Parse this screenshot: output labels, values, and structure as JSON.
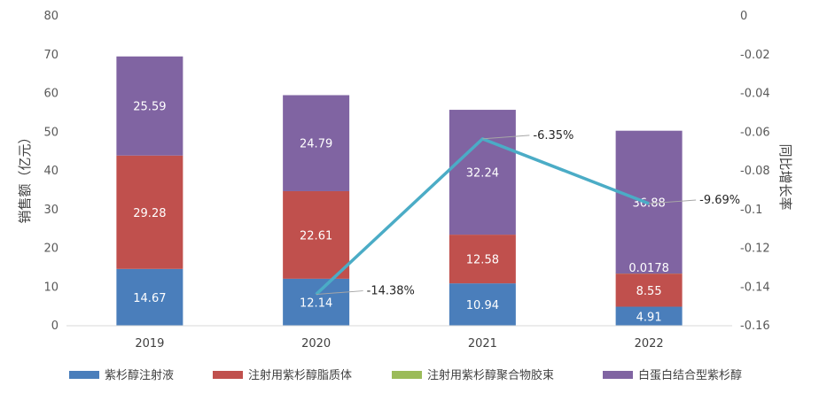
{
  "chart_data": {
    "type": "bar",
    "stacked": true,
    "title": "",
    "categories": [
      "2019",
      "2020",
      "2021",
      "2022"
    ],
    "series": [
      {
        "name": "紫杉醇注射液",
        "color": "#4a7ebb",
        "values": [
          14.67,
          12.14,
          10.94,
          4.91
        ],
        "labels": [
          "14.67",
          "12.14",
          "10.94",
          "4.91"
        ]
      },
      {
        "name": "注射用紫杉醇脂质体",
        "color": "#c0504d",
        "values": [
          29.28,
          22.61,
          12.58,
          8.55
        ],
        "labels": [
          "29.28",
          "22.61",
          "12.58",
          "8.55"
        ]
      },
      {
        "name": "注射用紫杉醇聚合物胶束",
        "color": "#9bbb59",
        "values": [
          0,
          0,
          0,
          0.0178
        ],
        "labels": [
          "",
          "",
          "",
          "0.0178"
        ]
      },
      {
        "name": "白蛋白结合型紫杉醇",
        "color": "#8064a2",
        "values": [
          25.59,
          24.79,
          32.24,
          36.88
        ],
        "labels": [
          "25.59",
          "24.79",
          "32.24",
          "36.88"
        ]
      }
    ],
    "line": {
      "name": "同比增长率",
      "color": "#4bacc6",
      "points": [
        {
          "category": "2020",
          "value": -0.1438,
          "label": "-14.38%"
        },
        {
          "category": "2021",
          "value": -0.0635,
          "label": "-6.35%"
        },
        {
          "category": "2022",
          "value": -0.0969,
          "label": "-9.69%"
        }
      ]
    },
    "ylabel": "销售额（亿元）",
    "y2label": "同比增长率",
    "ylim": [
      0,
      80
    ],
    "y2lim": [
      -0.16,
      0
    ],
    "yticks": [
      "0",
      "10",
      "20",
      "30",
      "40",
      "50",
      "60",
      "70",
      "80"
    ],
    "y2ticks": [
      "-0.16",
      "-0.14",
      "-0.12",
      "-0.1",
      "-0.08",
      "-0.06",
      "-0.04",
      "-0.02",
      "0"
    ],
    "legend_position": "bottom"
  }
}
